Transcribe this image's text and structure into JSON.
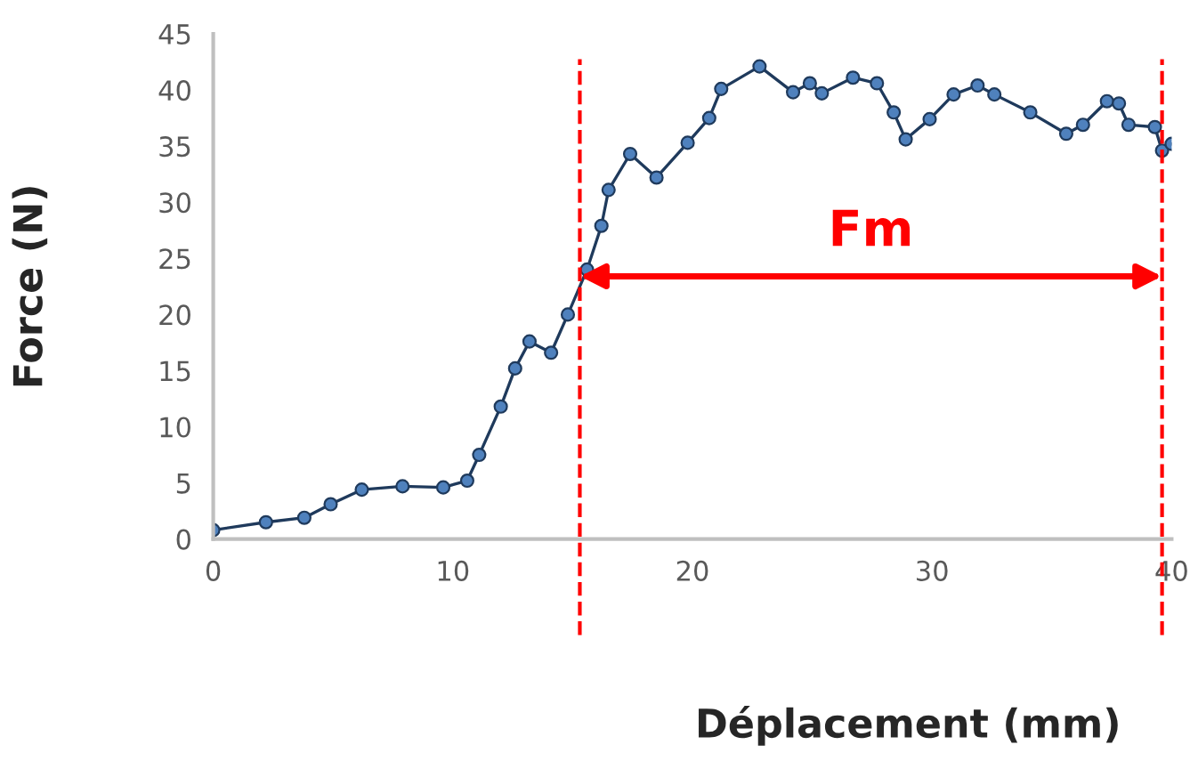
{
  "chart_data": {
    "type": "line",
    "xlabel": "Déplacement (mm)",
    "ylabel": "Force (N)",
    "x": [
      0,
      2.2,
      3.8,
      4.9,
      6.2,
      7.9,
      9.6,
      10.6,
      11.1,
      12.0,
      12.6,
      13.2,
      14.1,
      14.8,
      15.6,
      16.2,
      16.5,
      17.4,
      18.5,
      19.8,
      20.7,
      21.2,
      22.8,
      24.2,
      24.9,
      25.4,
      26.7,
      27.7,
      28.4,
      28.9,
      29.9,
      30.9,
      31.9,
      32.6,
      34.1,
      35.6,
      36.3,
      37.3,
      37.8,
      38.2,
      39.3,
      39.6,
      40.0
    ],
    "series": [
      {
        "color": "#4f81bd",
        "values": [
          0.8,
          1.5,
          1.9,
          3.1,
          4.4,
          4.7,
          4.6,
          5.2,
          7.5,
          11.8,
          15.2,
          17.6,
          16.6,
          20.0,
          24.0,
          27.9,
          31.1,
          34.3,
          32.2,
          35.3,
          37.5,
          40.1,
          42.1,
          39.8,
          40.6,
          39.7,
          41.1,
          40.6,
          38.0,
          35.6,
          37.4,
          39.6,
          40.4,
          39.6,
          38.0,
          36.1,
          36.9,
          39.0,
          38.8,
          36.9,
          36.7,
          34.6,
          35.2
        ]
      }
    ],
    "marker": "circle",
    "xlim": [
      0,
      40
    ],
    "xticks": [
      0,
      10,
      20,
      30,
      40
    ],
    "ylim": [
      0,
      45
    ],
    "yticks": [
      0,
      5,
      10,
      15,
      20,
      25,
      30,
      35,
      40,
      45
    ],
    "grid": false,
    "legend": false,
    "ref_lines": [
      {
        "axis": "x",
        "value": 15.3,
        "color": "#ff0000",
        "line_style": "dashed"
      },
      {
        "axis": "x",
        "value": 39.6,
        "color": "#ff0000",
        "line_style": "dashed"
      }
    ],
    "annotations": [
      "Fm"
    ]
  }
}
